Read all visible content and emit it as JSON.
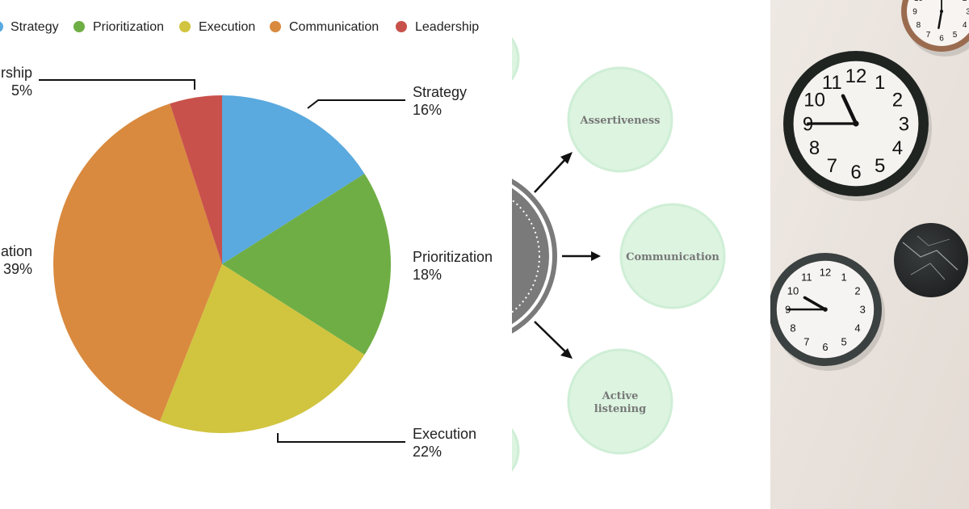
{
  "chart_data": {
    "type": "pie",
    "categories": [
      "Strategy",
      "Prioritization",
      "Execution",
      "Communication",
      "Leadership"
    ],
    "values": [
      16,
      18,
      22,
      39,
      5
    ],
    "value_labels": [
      "16%",
      "18%",
      "22%",
      "39%",
      "5%"
    ],
    "colors": [
      "#5aa9df",
      "#6fae45",
      "#d1c43f",
      "#d98a3e",
      "#c9514b"
    ],
    "legend_position": "top",
    "title": "",
    "slice_labels": [
      {
        "name": "Strategy",
        "value": "16%"
      },
      {
        "name": "Prioritization",
        "value": "18%"
      },
      {
        "name": "Execution",
        "value": "22%"
      },
      {
        "name": "ation",
        "value": "39%"
      },
      {
        "name": "rship",
        "value": "5%"
      }
    ]
  },
  "diagram": {
    "nodes": [
      "Assertiveness",
      "Communication",
      "Active",
      "listening"
    ]
  },
  "photo": {
    "clock_numbers": [
      "12",
      "1",
      "2",
      "3",
      "4",
      "5",
      "6",
      "7",
      "8",
      "9",
      "10",
      "11"
    ]
  },
  "colors": {
    "node_fill": "#dcf4e0",
    "node_ring": "#cfeed6",
    "hub_grey": "#7a7a7a",
    "wall": "#e9e2dc"
  }
}
